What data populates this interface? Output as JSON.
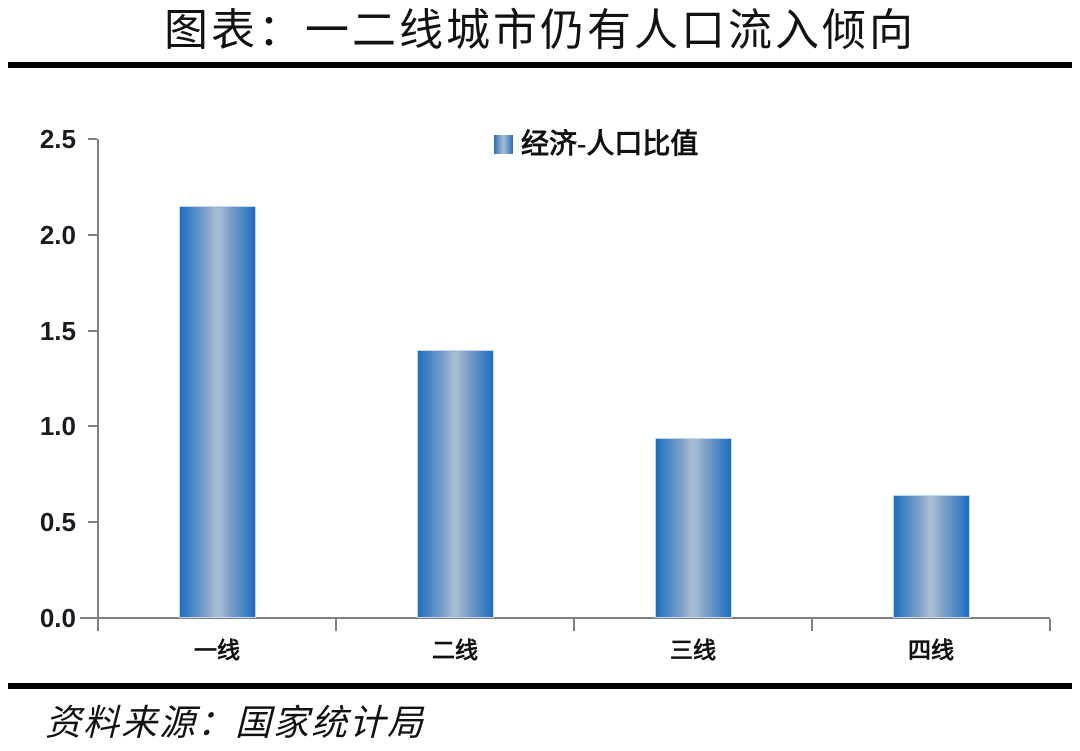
{
  "title": "图表：一二线城市仍有人口流入倾向",
  "source": "资料来源：国家统计局",
  "chart_data": {
    "type": "bar",
    "title": "图表：一二线城市仍有人口流入倾向",
    "legend": [
      "经济-人口比值"
    ],
    "legend_position": "top-center",
    "categories": [
      "一线",
      "二线",
      "三线",
      "四线"
    ],
    "values": [
      2.15,
      1.4,
      0.94,
      0.64
    ],
    "xlabel": "",
    "ylabel": "",
    "ylim": [
      0,
      2.5
    ],
    "yticks": [
      0.0,
      0.5,
      1.0,
      1.5,
      2.0,
      2.5
    ],
    "ytick_labels": [
      "0.0",
      "0.5",
      "1.0",
      "1.5",
      "2.0",
      "2.5"
    ],
    "grid": false,
    "colors": {
      "bar_edge": "#1f6dbf",
      "bar_center": "#a5bbd2",
      "bar_border": "#c3d8ee",
      "axis": "#808080",
      "text": "#111111",
      "rule": "#000000"
    },
    "source": "资料来源：国家统计局"
  }
}
